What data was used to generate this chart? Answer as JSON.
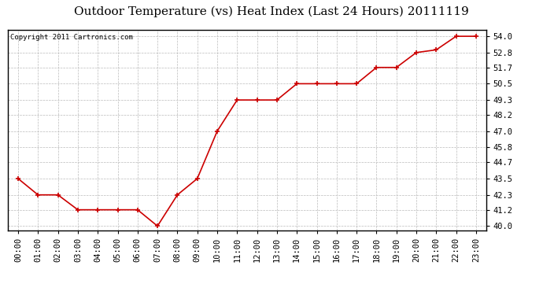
{
  "title": "Outdoor Temperature (vs) Heat Index (Last 24 Hours) 20111119",
  "copyright": "Copyright 2011 Cartronics.com",
  "x_labels": [
    "00:00",
    "01:00",
    "02:00",
    "03:00",
    "04:00",
    "05:00",
    "06:00",
    "07:00",
    "08:00",
    "09:00",
    "10:00",
    "11:00",
    "12:00",
    "13:00",
    "14:00",
    "15:00",
    "16:00",
    "17:00",
    "18:00",
    "19:00",
    "20:00",
    "21:00",
    "22:00",
    "23:00"
  ],
  "y_values": [
    43.5,
    42.3,
    42.3,
    41.2,
    41.2,
    41.2,
    41.2,
    40.0,
    42.3,
    43.5,
    47.0,
    49.3,
    49.3,
    49.3,
    50.5,
    50.5,
    50.5,
    50.5,
    51.7,
    51.7,
    52.8,
    53.0,
    54.0,
    54.0
  ],
  "line_color": "#cc0000",
  "marker": "+",
  "marker_size": 5,
  "marker_color": "#cc0000",
  "bg_color": "#ffffff",
  "grid_color": "#bbbbbb",
  "y_ticks": [
    40.0,
    41.2,
    42.3,
    43.5,
    44.7,
    45.8,
    47.0,
    48.2,
    49.3,
    50.5,
    51.7,
    52.8,
    54.0
  ],
  "ylim": [
    39.7,
    54.5
  ],
  "xlim": [
    -0.5,
    23.5
  ],
  "title_fontsize": 11,
  "copyright_fontsize": 6.5,
  "tick_fontsize": 7.5
}
